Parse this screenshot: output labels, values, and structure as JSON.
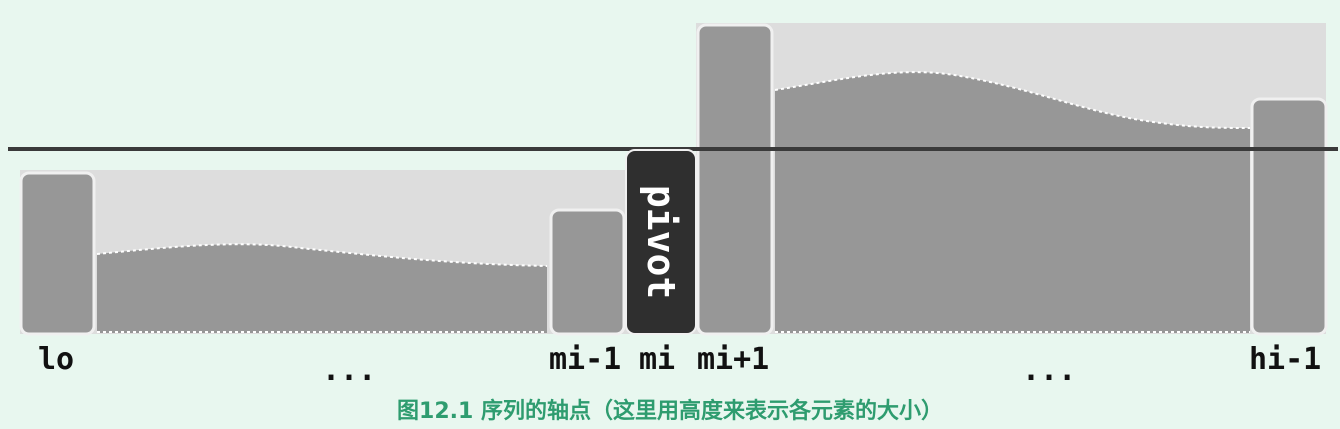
{
  "pivot_label": "pivot",
  "index_labels": {
    "lo": "lo",
    "dots_left": "...",
    "mi_minus_1": "mi-1",
    "mi": "mi",
    "mi_plus_1": "mi+1",
    "dots_right": "...",
    "hi_minus_1": "hi-1"
  },
  "caption": "图12.1 序列的轴点（这里用高度来表示各元素的大小）",
  "colors": {
    "background": "#e8f7ef",
    "bar": "#979797",
    "region": "#dddddd",
    "pivot": "#2f2f2f",
    "line": "#3a3a3a",
    "caption": "#2e9c6f"
  }
}
